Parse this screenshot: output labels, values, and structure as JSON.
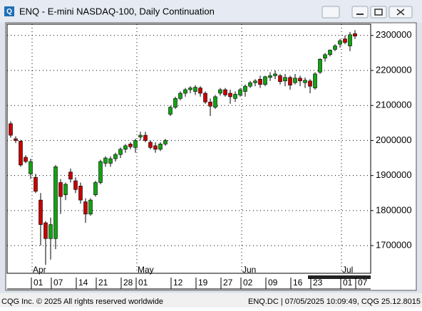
{
  "window": {
    "title": "ENQ - E-mini NASDAQ-100, Daily Continuation"
  },
  "chart_data": {
    "type": "candlestick",
    "categories": [
      null,
      null,
      null,
      null,
      null,
      "01",
      null,
      null,
      null,
      "07",
      null,
      null,
      null,
      null,
      "14",
      null,
      null,
      null,
      "21",
      null,
      null,
      null,
      null,
      "28",
      null,
      null,
      "01",
      null,
      null,
      null,
      null,
      null,
      null,
      "12",
      null,
      null,
      null,
      null,
      "19",
      null,
      null,
      null,
      null,
      "27",
      null,
      null,
      null,
      "02",
      null,
      null,
      null,
      null,
      "09",
      null,
      null,
      null,
      null,
      "16",
      null,
      null,
      null,
      "23",
      null,
      null,
      null,
      null,
      null,
      "01",
      null,
      null,
      "07"
    ],
    "months": [
      {
        "label": "Apr",
        "at": 5
      },
      {
        "label": "May",
        "at": 26
      },
      {
        "label": "Jun",
        "at": 47
      },
      {
        "label": "Jul",
        "at": 67
      }
    ],
    "open": [
      2048000,
      2005000,
      1998000,
      1952000,
      1905000,
      1895000,
      1830000,
      1765000,
      1720000,
      1720000,
      1880000,
      1845000,
      1910000,
      1885000,
      1870000,
      1825000,
      1790000,
      1845000,
      1880000,
      1935000,
      1935000,
      1948000,
      1960000,
      1975000,
      1990000,
      1980000,
      2010000,
      2015000,
      1995000,
      1985000,
      1975000,
      1990000,
      2075000,
      2095000,
      2120000,
      2135000,
      2145000,
      2140000,
      2150000,
      2135000,
      2110000,
      2095000,
      2135000,
      2145000,
      2135000,
      2120000,
      2130000,
      2140000,
      2155000,
      2165000,
      2175000,
      2160000,
      2180000,
      2185000,
      2185000,
      2170000,
      2180000,
      2165000,
      2178000,
      2165000,
      2170000,
      2150000,
      2195000,
      2235000,
      2245000,
      2260000,
      2275000,
      2290000,
      2270000,
      2305000,
      null
    ],
    "high": [
      2055000,
      2012000,
      2002000,
      1958000,
      1948000,
      1905000,
      1850000,
      1770000,
      1780000,
      1930000,
      1890000,
      1880000,
      1920000,
      1895000,
      1880000,
      1835000,
      1835000,
      1885000,
      1945000,
      1955000,
      1955000,
      1965000,
      1980000,
      1990000,
      1995000,
      2005000,
      2025000,
      2025000,
      2000000,
      1995000,
      1995000,
      2005000,
      2100000,
      2125000,
      2140000,
      2150000,
      2155000,
      2158000,
      2155000,
      2140000,
      2120000,
      2130000,
      2150000,
      2150000,
      2145000,
      2140000,
      2150000,
      2160000,
      2170000,
      2175000,
      2185000,
      2185000,
      2195000,
      2200000,
      2190000,
      2190000,
      2185000,
      2190000,
      2185000,
      2180000,
      2175000,
      2195000,
      2235000,
      2250000,
      2260000,
      2275000,
      2290000,
      2300000,
      2310000,
      2315000,
      null
    ],
    "low": [
      2008000,
      1993000,
      1925000,
      1935000,
      1890000,
      1850000,
      1700000,
      1645000,
      1660000,
      1690000,
      1790000,
      1830000,
      1880000,
      1850000,
      1820000,
      1765000,
      1785000,
      1840000,
      1875000,
      1925000,
      1925000,
      1940000,
      1950000,
      1965000,
      1975000,
      1965000,
      2000000,
      1995000,
      1975000,
      1965000,
      1970000,
      1985000,
      2070000,
      2090000,
      2115000,
      2125000,
      2135000,
      2130000,
      2125000,
      2105000,
      2070000,
      2090000,
      2128000,
      2125000,
      2105000,
      2110000,
      2125000,
      2125000,
      2150000,
      2155000,
      2150000,
      2155000,
      2170000,
      2175000,
      2160000,
      2155000,
      2145000,
      2160000,
      2155000,
      2150000,
      2135000,
      2145000,
      2190000,
      2225000,
      2240000,
      2255000,
      2265000,
      2275000,
      2255000,
      2290000,
      null
    ],
    "close": [
      2015000,
      2000000,
      1930000,
      1940000,
      1940000,
      1855000,
      1760000,
      1720000,
      1760000,
      1925000,
      1840000,
      1875000,
      1890000,
      1860000,
      1830000,
      1790000,
      1830000,
      1880000,
      1940000,
      1950000,
      1948000,
      1960000,
      1975000,
      1985000,
      1982000,
      2000000,
      2015000,
      2000000,
      1980000,
      1975000,
      1990000,
      2000000,
      2095000,
      2120000,
      2135000,
      2145000,
      2150000,
      2152000,
      2135000,
      2110000,
      2098000,
      2125000,
      2145000,
      2130000,
      2125000,
      2132000,
      2145000,
      2155000,
      2165000,
      2170000,
      2160000,
      2182000,
      2185000,
      2190000,
      2168000,
      2180000,
      2158000,
      2178000,
      2170000,
      2172000,
      2155000,
      2190000,
      2232000,
      2245000,
      2258000,
      2270000,
      2285000,
      2280000,
      2302000,
      2298000,
      null
    ],
    "up_color": "#12a312",
    "down_color": "#c80000",
    "ylim": [
      1623000,
      2330000
    ],
    "yticks": [
      1700000,
      1800000,
      1900000,
      2000000,
      2100000,
      2200000,
      2300000
    ],
    "grid": true
  },
  "footer": {
    "left": "CQG Inc. © 2025 All rights reserved worldwide",
    "right": "ENQ.DC | 07/05/2025 10:09:49, CQG 25.12.8015"
  }
}
